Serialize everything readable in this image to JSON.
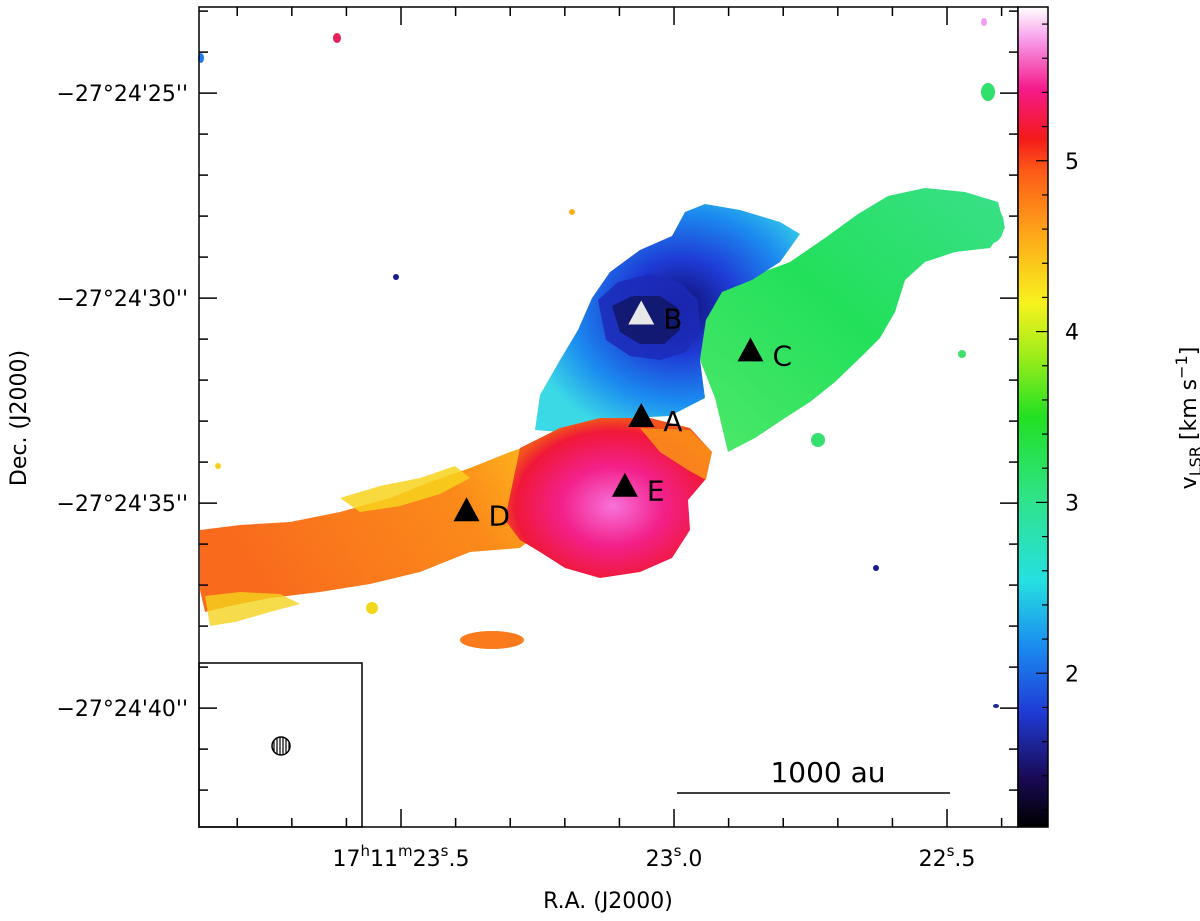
{
  "chart_data": {
    "type": "heatmap",
    "xlabel": "R.A. (J2000)",
    "ylabel": "Dec. (J2000)",
    "x_ticks": [
      {
        "hms": [
          "17",
          "h",
          "11",
          "m",
          "23",
          "s",
          ".5"
        ],
        "ra_s": 23.5
      },
      {
        "hms": [
          "",
          "",
          "",
          "",
          "23",
          "s",
          ".0"
        ],
        "ra_s": 23.0
      },
      {
        "hms": [
          "",
          "",
          "",
          "",
          "22",
          "s",
          ".5"
        ],
        "ra_s": 22.5
      }
    ],
    "xlim": [
      23.87,
      22.37
    ],
    "y_ticks": [
      {
        "label": "−27°24'25''",
        "dec_arcsec": 25
      },
      {
        "label": "−27°24'30''",
        "dec_arcsec": 30
      },
      {
        "label": "−27°24'35''",
        "dec_arcsec": 35
      },
      {
        "label": "−27°24'40''",
        "dec_arcsec": 40
      }
    ],
    "ylim": [
      22.9,
      42.9
    ],
    "colorbar": {
      "label": "v",
      "label_sub": "LSR",
      "unit": "[km s",
      "unit_sup": "−1",
      "unit_end": "]",
      "ticks": [
        2,
        3,
        4,
        5
      ],
      "range": [
        1.1,
        5.9
      ]
    },
    "sources": [
      {
        "name": "A",
        "ra_s": 23.06,
        "dec_arcsec": 32.9,
        "marker": "black-triangle"
      },
      {
        "name": "B",
        "ra_s": 23.06,
        "dec_arcsec": 30.4,
        "marker": "white-triangle"
      },
      {
        "name": "C",
        "ra_s": 22.86,
        "dec_arcsec": 31.3,
        "marker": "black-triangle"
      },
      {
        "name": "D",
        "ra_s": 23.38,
        "dec_arcsec": 35.2,
        "marker": "black-triangle"
      },
      {
        "name": "E",
        "ra_s": 23.09,
        "dec_arcsec": 34.6,
        "marker": "black-triangle"
      }
    ],
    "scale_bar": {
      "label": "1000 au"
    },
    "beam": {
      "shape": "circle",
      "hatched": true
    }
  }
}
